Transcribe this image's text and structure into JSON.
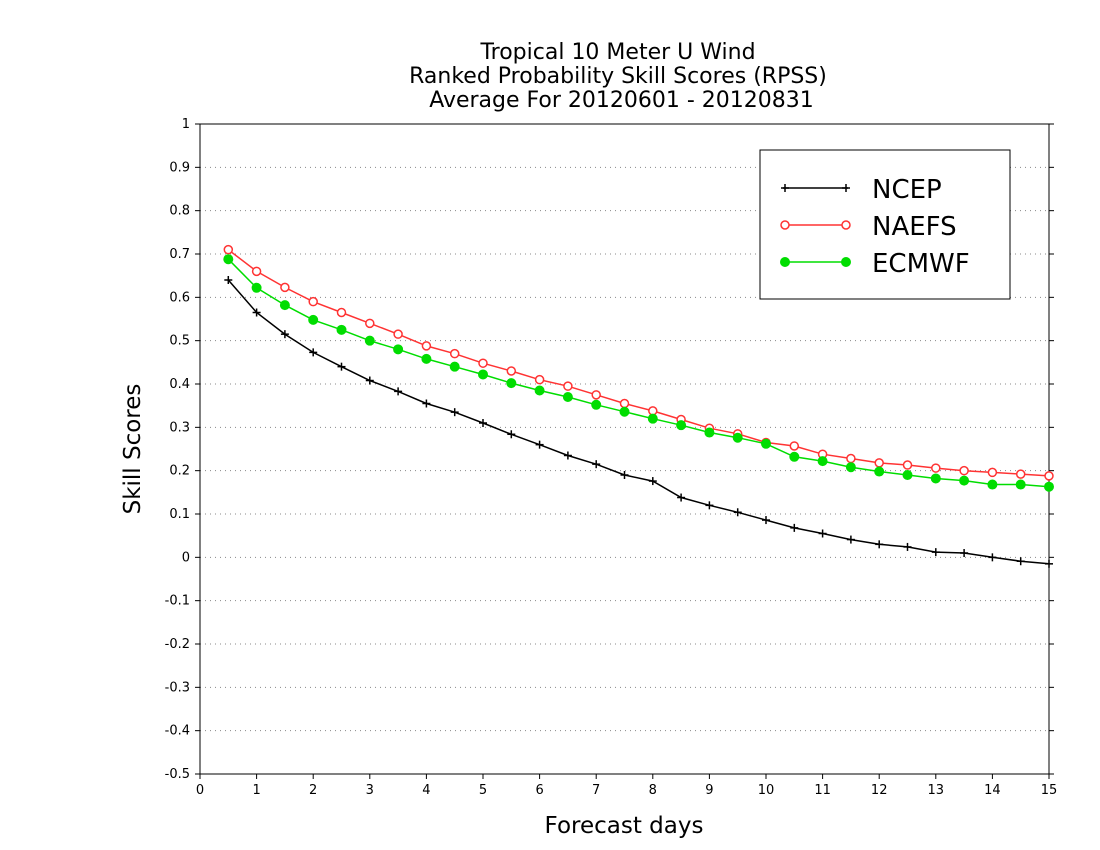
{
  "chart_data": {
    "type": "line",
    "title_lines": [
      "Tropical 10 Meter U Wind",
      "Ranked Probability Skill Scores (RPSS)",
      " Average For 20120601 - 20120831"
    ],
    "xlabel": "Forecast days",
    "ylabel": "Skill Scores",
    "xlim": [
      0,
      15
    ],
    "ylim": [
      -0.5,
      1
    ],
    "x_ticks": [
      0,
      1,
      2,
      3,
      4,
      5,
      6,
      7,
      8,
      9,
      10,
      11,
      12,
      13,
      14,
      15
    ],
    "y_ticks": [
      -0.5,
      -0.4,
      -0.3,
      -0.2,
      -0.1,
      0,
      0.1,
      0.2,
      0.3,
      0.4,
      0.5,
      0.6,
      0.7,
      0.8,
      0.9,
      1
    ],
    "y_tick_labels": [
      "-0.5",
      "-0.4",
      "-0.3",
      "-0.2",
      "-0.1",
      "0",
      "0.1",
      "0.2",
      "0.3",
      "0.4",
      "0.5",
      "0.6",
      "0.7",
      "0.8",
      "0.9",
      "1"
    ],
    "grid": "horizontal-dotted",
    "legend_position": "top-right",
    "x": [
      0.5,
      1.0,
      1.5,
      2.0,
      2.5,
      3.0,
      3.5,
      4.0,
      4.5,
      5.0,
      5.5,
      6.0,
      6.5,
      7.0,
      7.5,
      8.0,
      8.5,
      9.0,
      9.5,
      10.0,
      10.5,
      11.0,
      11.5,
      12.0,
      12.5,
      13.0,
      13.5,
      14.0,
      14.5,
      15.0
    ],
    "series": [
      {
        "name": "NCEP",
        "color": "#000000",
        "marker": "plus",
        "values": [
          0.64,
          0.565,
          0.515,
          0.473,
          0.44,
          0.408,
          0.383,
          0.355,
          0.335,
          0.31,
          0.284,
          0.26,
          0.235,
          0.215,
          0.19,
          0.176,
          0.138,
          0.12,
          0.104,
          0.086,
          0.068,
          0.055,
          0.041,
          0.03,
          0.024,
          0.012,
          0.01,
          0.0,
          -0.009,
          -0.015
        ]
      },
      {
        "name": "NAEFS",
        "color": "#ff3333",
        "marker": "open-circle",
        "values": [
          0.71,
          0.66,
          0.623,
          0.59,
          0.565,
          0.54,
          0.515,
          0.488,
          0.47,
          0.448,
          0.43,
          0.41,
          0.395,
          0.375,
          0.355,
          0.338,
          0.318,
          0.298,
          0.285,
          0.265,
          0.257,
          0.238,
          0.228,
          0.218,
          0.213,
          0.206,
          0.2,
          0.196,
          0.192,
          0.188
        ]
      },
      {
        "name": "ECMWF",
        "color": "#00dd00",
        "marker": "filled-circle",
        "values": [
          0.688,
          0.622,
          0.582,
          0.548,
          0.525,
          0.5,
          0.48,
          0.458,
          0.44,
          0.422,
          0.402,
          0.385,
          0.37,
          0.352,
          0.336,
          0.32,
          0.305,
          0.288,
          0.276,
          0.262,
          0.232,
          0.222,
          0.208,
          0.198,
          0.19,
          0.182,
          0.177,
          0.168,
          0.168,
          0.163
        ]
      }
    ]
  }
}
